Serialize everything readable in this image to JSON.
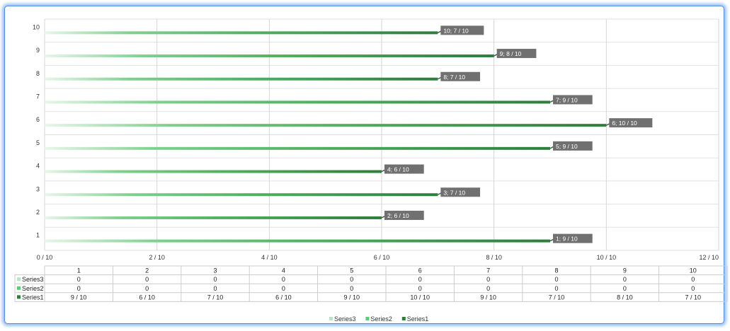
{
  "chart_data": {
    "type": "bar",
    "orientation": "horizontal",
    "categories": [
      "1",
      "2",
      "3",
      "4",
      "5",
      "6",
      "7",
      "8",
      "9",
      "10"
    ],
    "series": [
      {
        "name": "Series3",
        "values": [
          0,
          0,
          0,
          0,
          0,
          0,
          0,
          0,
          0,
          0
        ],
        "color": "#b9e3c1",
        "table_values": [
          "0",
          "0",
          "0",
          "0",
          "0",
          "0",
          "0",
          "0",
          "0",
          "0"
        ]
      },
      {
        "name": "Series2",
        "values": [
          0,
          0,
          0,
          0,
          0,
          0,
          0,
          0,
          0,
          0
        ],
        "color": "#5ccb72",
        "table_values": [
          "0",
          "0",
          "0",
          "0",
          "0",
          "0",
          "0",
          "0",
          "0",
          "0"
        ]
      },
      {
        "name": "Series1",
        "values": [
          9,
          6,
          7,
          6,
          9,
          10,
          9,
          7,
          8,
          7
        ],
        "color": "#2e7d3c",
        "table_values": [
          "9 / 10",
          "6 / 10",
          "7 / 10",
          "6 / 10",
          "9 / 10",
          "10 / 10",
          "9 / 10",
          "7 / 10",
          "8 / 10",
          "7 / 10"
        ]
      }
    ],
    "data_labels": [
      "1; 9 / 10",
      "2; 6 / 10",
      "3; 7 / 10",
      "4; 6 / 10",
      "5; 9 / 10",
      "6; 10 / 10",
      "7; 9 / 10",
      "8; 7 / 10",
      "9; 8 / 10",
      "10; 7 / 10"
    ],
    "x_ticks": [
      "0 / 10",
      "2 / 10",
      "4 / 10",
      "6 / 10",
      "8 / 10",
      "10 / 10",
      "12 / 10"
    ],
    "y_ticks": [
      "1",
      "2",
      "3",
      "4",
      "5",
      "6",
      "7",
      "8",
      "9",
      "10"
    ],
    "xlim": [
      0,
      12
    ],
    "grid": true,
    "legend_position": "bottom",
    "data_table": true,
    "title": "",
    "xlabel": "",
    "ylabel": ""
  }
}
